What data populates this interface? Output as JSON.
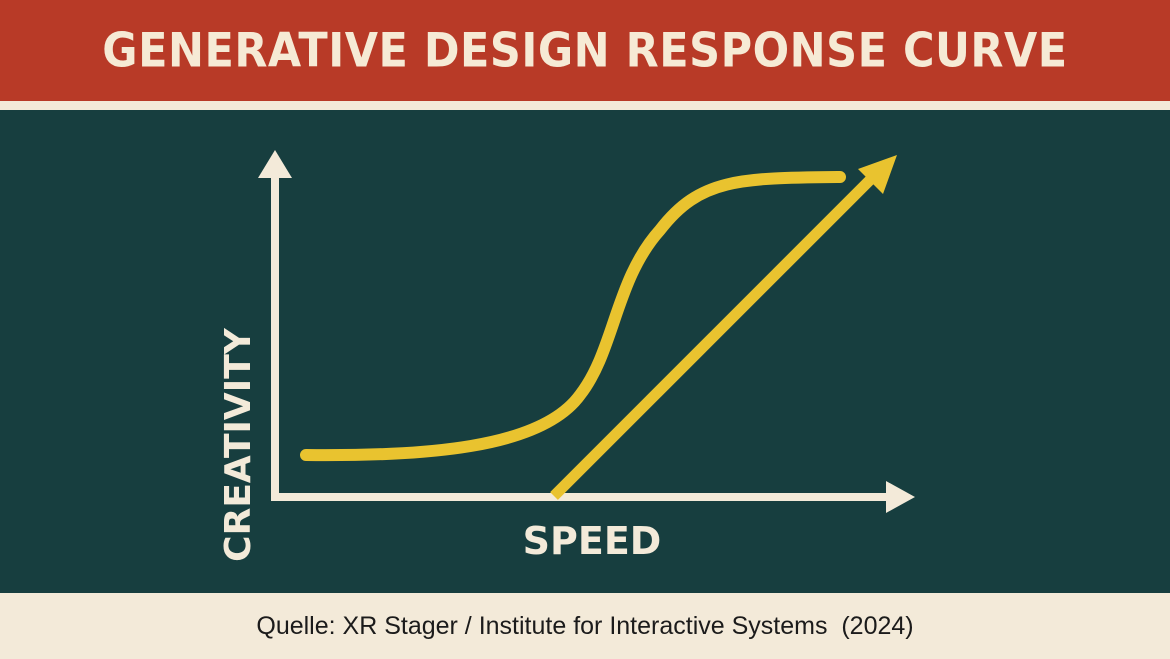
{
  "title": "GENERATIVE DESIGN RESPONSE CURVE",
  "axes": {
    "y_label": "CREATIVITY",
    "x_label": "SPEED"
  },
  "source": "Quelle: XR Stager / Institute for Interactive Systems  (2024)",
  "colors": {
    "header": "#b83a27",
    "panel": "#173e3f",
    "cream": "#f3ead9",
    "curve": "#e9c32f"
  }
}
